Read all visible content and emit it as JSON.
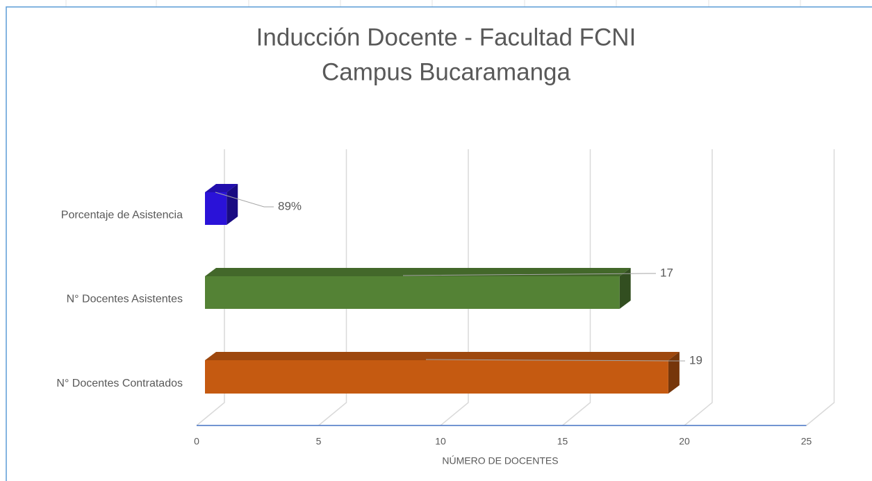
{
  "chart_data": {
    "type": "bar3d",
    "title": [
      "Inducción Docente - Facultad FCNI",
      "Campus Bucaramanga"
    ],
    "categories": [
      "Porcentaje de Asistencia",
      "N° Docentes Asistentes",
      "N° Docentes Contratados"
    ],
    "values": [
      0.89,
      17,
      19
    ],
    "value_labels": [
      "89%",
      "17",
      "19"
    ],
    "colors": [
      "#2a12d8",
      "#548235",
      "#c55a11"
    ],
    "xlabel": "NÚMERO DE DOCENTES",
    "xlim": [
      0,
      25
    ],
    "xticks": [
      0,
      5,
      10,
      15,
      20,
      25
    ],
    "grid": true
  }
}
